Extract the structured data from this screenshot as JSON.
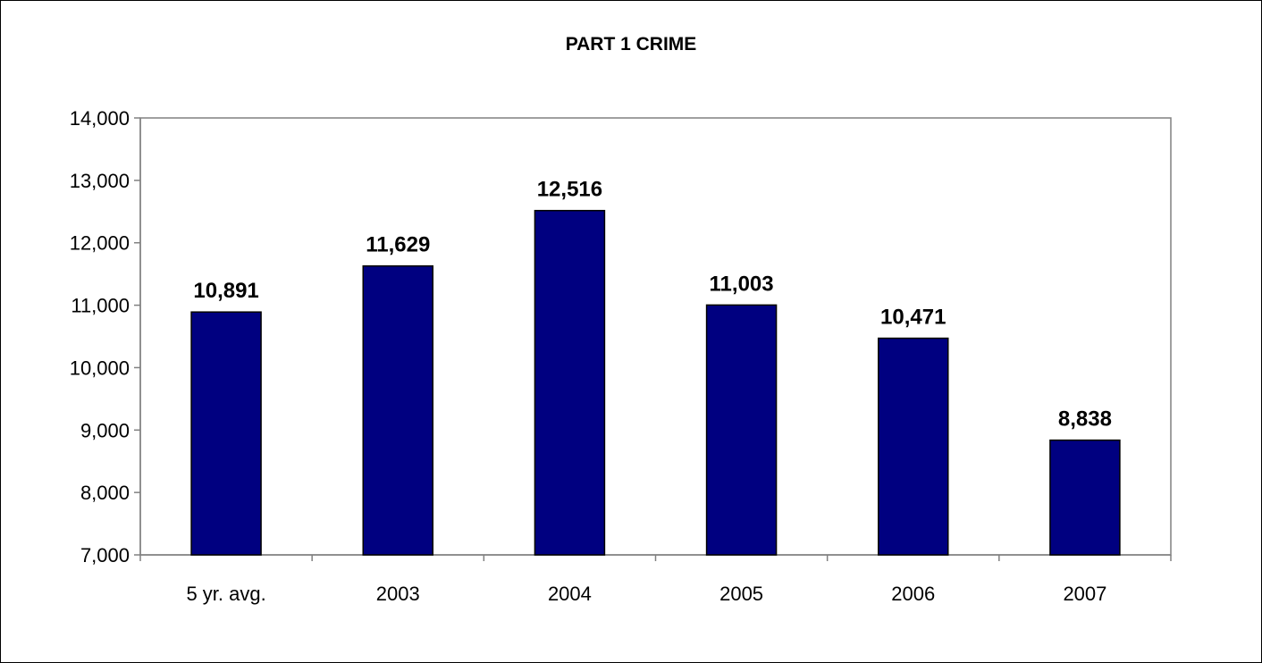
{
  "chart_data": {
    "type": "bar",
    "title": "PART 1 CRIME",
    "xlabel": "",
    "ylabel": "",
    "categories": [
      "5 yr. avg.",
      "2003",
      "2004",
      "2005",
      "2006",
      "2007"
    ],
    "values": [
      10891,
      11629,
      12516,
      11003,
      10471,
      8838
    ],
    "value_labels": [
      "10,891",
      "11,629",
      "12,516",
      "11,003",
      "10,471",
      "8,838"
    ],
    "ylim": [
      7000,
      14000
    ],
    "yticks": [
      7000,
      8000,
      9000,
      10000,
      11000,
      12000,
      13000,
      14000
    ],
    "ytick_labels": [
      "7,000",
      "8,000",
      "9,000",
      "10,000",
      "11,000",
      "12,000",
      "13,000",
      "14,000"
    ],
    "grid": false,
    "legend": "none",
    "bar_color": "#000080"
  }
}
